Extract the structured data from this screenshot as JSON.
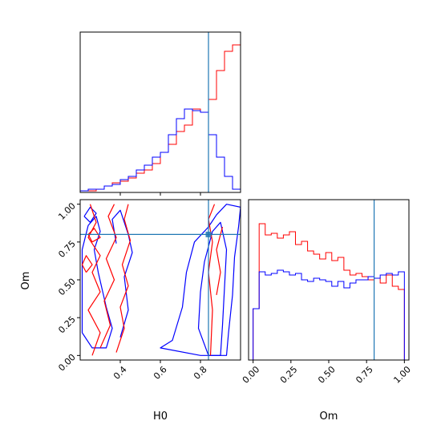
{
  "chart_data": {
    "type": "corner",
    "parameters": [
      "H0",
      "Om"
    ],
    "truth": {
      "H0": 0.84,
      "Om": 0.8
    },
    "colors": {
      "red_chain": "#ff0000",
      "blue_chain": "#0000ff",
      "truth_line": "#1f77b4"
    },
    "panels": [
      {
        "name": "H0 marginal histogram",
        "type": "step-histogram",
        "xlim": [
          0.2,
          1.0
        ],
        "ylim": [
          0,
          1.0
        ],
        "series": [
          {
            "color": "red",
            "x": [
              0.2,
              0.24,
              0.28,
              0.32,
              0.36,
              0.4,
              0.44,
              0.48,
              0.52,
              0.56,
              0.6,
              0.64,
              0.68,
              0.72,
              0.76,
              0.8,
              0.84,
              0.88,
              0.92,
              0.96
            ],
            "values": [
              0.01,
              0.01,
              0.02,
              0.04,
              0.06,
              0.07,
              0.09,
              0.12,
              0.14,
              0.18,
              0.25,
              0.3,
              0.38,
              0.42,
              0.52,
              0.5,
              0.58,
              0.76,
              0.88,
              0.92
            ]
          },
          {
            "color": "blue",
            "x": [
              0.2,
              0.24,
              0.28,
              0.32,
              0.36,
              0.4,
              0.44,
              0.48,
              0.52,
              0.56,
              0.6,
              0.64,
              0.68,
              0.72,
              0.76,
              0.8,
              0.84,
              0.88,
              0.92,
              0.96
            ],
            "values": [
              0.01,
              0.02,
              0.02,
              0.04,
              0.05,
              0.08,
              0.1,
              0.14,
              0.17,
              0.22,
              0.25,
              0.36,
              0.46,
              0.52,
              0.51,
              0.5,
              0.36,
              0.22,
              0.1,
              0.02
            ]
          }
        ]
      },
      {
        "name": "Om marginal histogram",
        "type": "step-histogram",
        "xlim": [
          -0.03,
          1.03
        ],
        "ylim": [
          0,
          1.0
        ],
        "x_ticks": [
          "0.00",
          "0.25",
          "0.50",
          "0.75",
          "1.00"
        ],
        "x_tick_values": [
          0,
          0.25,
          0.5,
          0.75,
          1.0
        ],
        "xlabel": "Om",
        "series": [
          {
            "color": "red",
            "x": [
              0,
              0.04,
              0.08,
              0.12,
              0.16,
              0.2,
              0.24,
              0.28,
              0.32,
              0.36,
              0.4,
              0.44,
              0.48,
              0.52,
              0.56,
              0.6,
              0.64,
              0.68,
              0.72,
              0.76,
              0.8,
              0.84,
              0.88,
              0.92,
              0.96
            ],
            "values": [
              0.32,
              0.85,
              0.78,
              0.79,
              0.76,
              0.78,
              0.8,
              0.72,
              0.74,
              0.68,
              0.66,
              0.63,
              0.67,
              0.62,
              0.64,
              0.56,
              0.53,
              0.54,
              0.52,
              0.5,
              0.51,
              0.48,
              0.53,
              0.46,
              0.44
            ]
          },
          {
            "color": "blue",
            "x": [
              0,
              0.04,
              0.08,
              0.12,
              0.16,
              0.2,
              0.24,
              0.28,
              0.32,
              0.36,
              0.4,
              0.44,
              0.48,
              0.52,
              0.56,
              0.6,
              0.64,
              0.68,
              0.72,
              0.76,
              0.8,
              0.84,
              0.88,
              0.92,
              0.96
            ],
            "values": [
              0.32,
              0.55,
              0.53,
              0.54,
              0.56,
              0.55,
              0.53,
              0.54,
              0.5,
              0.49,
              0.51,
              0.5,
              0.49,
              0.46,
              0.49,
              0.45,
              0.48,
              0.5,
              0.5,
              0.52,
              0.51,
              0.53,
              0.54,
              0.53,
              0.55
            ]
          }
        ]
      },
      {
        "name": "H0 vs Om contours",
        "type": "contour",
        "xlim": [
          0.2,
          1.0
        ],
        "ylim": [
          -0.03,
          1.03
        ],
        "x_ticks": [
          "0.4",
          "0.6",
          "0.8"
        ],
        "x_tick_values": [
          0.4,
          0.6,
          0.8
        ],
        "y_ticks": [
          "0.00",
          "0.25",
          "0.50",
          "0.75",
          "1.00"
        ],
        "y_tick_values": [
          0,
          0.25,
          0.5,
          0.75,
          1.0
        ],
        "xlabel": "H0",
        "ylabel": "Om",
        "contours": [
          {
            "color": "blue",
            "points": [
              [
                0.8,
                0.0
              ],
              [
                0.93,
                0.0
              ],
              [
                0.94,
                0.15
              ],
              [
                0.96,
                0.4
              ],
              [
                0.97,
                0.65
              ],
              [
                0.99,
                0.85
              ],
              [
                1.0,
                0.98
              ],
              [
                0.93,
                1.0
              ],
              [
                0.88,
                0.93
              ],
              [
                0.84,
                0.85
              ],
              [
                0.77,
                0.75
              ],
              [
                0.73,
                0.55
              ],
              [
                0.71,
                0.32
              ],
              [
                0.66,
                0.1
              ],
              [
                0.6,
                0.05
              ],
              [
                0.8,
                0.0
              ]
            ]
          },
          {
            "color": "blue",
            "points": [
              [
                0.84,
                0.0
              ],
              [
                0.9,
                0.0
              ],
              [
                0.91,
                0.2
              ],
              [
                0.92,
                0.45
              ],
              [
                0.93,
                0.7
              ],
              [
                0.9,
                0.88
              ],
              [
                0.86,
                0.82
              ],
              [
                0.82,
                0.62
              ],
              [
                0.8,
                0.42
              ],
              [
                0.79,
                0.18
              ],
              [
                0.84,
                0.0
              ]
            ]
          },
          {
            "color": "blue",
            "points": [
              [
                0.21,
                0.15
              ],
              [
                0.26,
                0.05
              ],
              [
                0.33,
                0.05
              ],
              [
                0.36,
                0.18
              ],
              [
                0.33,
                0.32
              ],
              [
                0.29,
                0.55
              ],
              [
                0.27,
                0.7
              ],
              [
                0.3,
                0.82
              ],
              [
                0.28,
                0.92
              ],
              [
                0.24,
                0.86
              ],
              [
                0.21,
                0.7
              ],
              [
                0.21,
                0.15
              ]
            ]
          },
          {
            "color": "blue",
            "points": [
              [
                0.4,
                0.12
              ],
              [
                0.44,
                0.3
              ],
              [
                0.42,
                0.52
              ],
              [
                0.46,
                0.68
              ],
              [
                0.44,
                0.8
              ],
              [
                0.4,
                0.96
              ],
              [
                0.36,
                0.9
              ],
              [
                0.38,
                0.74
              ]
            ]
          },
          {
            "color": "blue",
            "points": [
              [
                0.22,
                0.92
              ],
              [
                0.25,
                0.98
              ],
              [
                0.28,
                0.94
              ],
              [
                0.25,
                0.88
              ],
              [
                0.22,
                0.92
              ]
            ]
          },
          {
            "color": "red",
            "points": [
              [
                0.26,
                0.0
              ],
              [
                0.3,
                0.15
              ],
              [
                0.24,
                0.3
              ],
              [
                0.3,
                0.42
              ],
              [
                0.26,
                0.55
              ],
              [
                0.3,
                0.66
              ],
              [
                0.24,
                0.78
              ],
              [
                0.28,
                0.88
              ],
              [
                0.25,
                1.0
              ]
            ]
          },
          {
            "color": "red",
            "points": [
              [
                0.3,
                0.05
              ],
              [
                0.35,
                0.2
              ],
              [
                0.32,
                0.36
              ],
              [
                0.37,
                0.5
              ],
              [
                0.33,
                0.64
              ],
              [
                0.38,
                0.78
              ],
              [
                0.34,
                0.92
              ],
              [
                0.37,
                1.0
              ]
            ]
          },
          {
            "color": "red",
            "points": [
              [
                0.38,
                0.02
              ],
              [
                0.42,
                0.18
              ],
              [
                0.4,
                0.32
              ],
              [
                0.44,
                0.46
              ],
              [
                0.41,
                0.6
              ],
              [
                0.45,
                0.76
              ],
              [
                0.42,
                0.9
              ],
              [
                0.44,
                1.0
              ]
            ]
          },
          {
            "color": "red",
            "points": [
              [
                0.85,
                0.0
              ],
              [
                0.86,
                0.3
              ],
              [
                0.84,
                0.55
              ],
              [
                0.86,
                0.75
              ],
              [
                0.84,
                0.9
              ],
              [
                0.87,
                1.0
              ]
            ]
          },
          {
            "color": "red",
            "points": [
              [
                0.88,
                0.4
              ],
              [
                0.9,
                0.55
              ],
              [
                0.88,
                0.7
              ],
              [
                0.91,
                0.85
              ]
            ]
          },
          {
            "color": "red",
            "points": [
              [
                0.23,
                0.55
              ],
              [
                0.26,
                0.6
              ],
              [
                0.23,
                0.66
              ],
              [
                0.21,
                0.6
              ],
              [
                0.23,
                0.55
              ]
            ]
          },
          {
            "color": "red",
            "points": [
              [
                0.26,
                0.75
              ],
              [
                0.3,
                0.78
              ],
              [
                0.27,
                0.84
              ],
              [
                0.24,
                0.8
              ],
              [
                0.26,
                0.75
              ]
            ]
          }
        ]
      }
    ]
  }
}
